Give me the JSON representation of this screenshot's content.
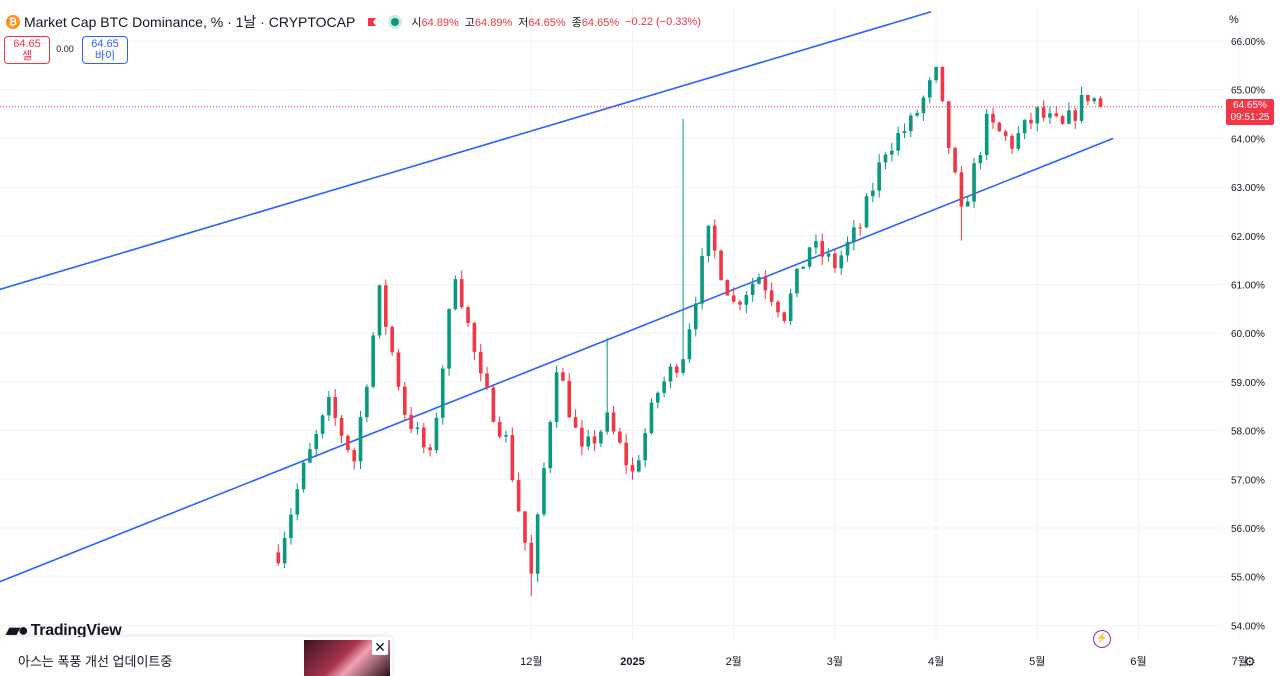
{
  "header": {
    "coin_icon": "bitcoin-icon",
    "title": "Market Cap BTC Dominance, % · 1날 · CRYPTOCAP",
    "status_color": "#089981",
    "ohlc": [
      {
        "label": "시",
        "value": "64.89%"
      },
      {
        "label": "고",
        "value": "64.89%"
      },
      {
        "label": "저",
        "value": "64.65%"
      },
      {
        "label": "종",
        "value": "64.65%"
      }
    ],
    "change": "−0.22 (−0.33%)"
  },
  "trade": {
    "sell_price": "64.65",
    "sell_label": "셀",
    "spread": "0.00",
    "buy_price": "64.65",
    "buy_label": "바이"
  },
  "axis": {
    "unit": "%",
    "current_price": "64.65%",
    "countdown": "09:51:25"
  },
  "branding": {
    "logo_text": "TradingView"
  },
  "banner": {
    "text": "아스는 폭풍 개선 업데이트중",
    "close_icon": "close-icon"
  },
  "icons": {
    "bolt": "lightning-icon",
    "settings": "gear-icon"
  },
  "colors": {
    "up": "#089981",
    "down": "#f23645",
    "channel": "#2962ff"
  },
  "chart_data": {
    "type": "candlestick",
    "yunit": "%",
    "ylim": [
      53.9,
      66.3
    ],
    "y_ticks": [
      "66.00%",
      "65.00%",
      "64.00%",
      "63.00%",
      "62.00%",
      "61.00%",
      "60.00%",
      "59.00%",
      "58.00%",
      "57.00%",
      "56.00%",
      "55.00%",
      "54.00%"
    ],
    "x_ticks": [
      "12월",
      "2025",
      "2월",
      "3월",
      "4월",
      "5월",
      "6월",
      "7월"
    ],
    "last_price": 64.65,
    "trend_points": [
      [
        11,
        55.5
      ],
      [
        12,
        57.2
      ],
      [
        13,
        58.5
      ],
      [
        14,
        57.4
      ],
      [
        15,
        60.8
      ],
      [
        16,
        58.4
      ],
      [
        17,
        57.4
      ],
      [
        18,
        61.3
      ],
      [
        19,
        59.0
      ],
      [
        20,
        57.8
      ],
      [
        21,
        55.0
      ],
      [
        22,
        59.4
      ],
      [
        23,
        57.5
      ],
      [
        24,
        58.2
      ],
      [
        25,
        57.1
      ],
      [
        26,
        58.8
      ],
      [
        27,
        59.6
      ],
      [
        28,
        62.0
      ],
      [
        29,
        60.6
      ],
      [
        30,
        61.2
      ],
      [
        31,
        60.4
      ],
      [
        32,
        61.8
      ],
      [
        33,
        61.4
      ],
      [
        34,
        62.2
      ],
      [
        35,
        63.8
      ],
      [
        36,
        64.3
      ],
      [
        37,
        65.3
      ],
      [
        38,
        62.4
      ],
      [
        39,
        64.3
      ],
      [
        40,
        63.9
      ],
      [
        41,
        64.5
      ],
      [
        42,
        64.2
      ],
      [
        43,
        64.9
      ],
      [
        43.6,
        64.65
      ]
    ],
    "wick_overrides": [
      {
        "x": 21,
        "low": 54.6
      },
      {
        "x": 24,
        "high": 59.9
      },
      {
        "x": 27,
        "high": 64.4
      },
      {
        "x": 37,
        "high": 65.4
      },
      {
        "x": 38,
        "low": 61.9
      }
    ],
    "channel": {
      "upper": {
        "from": [
          0,
          60.9
        ],
        "to": [
          36.8,
          66.6
        ]
      },
      "lower": {
        "from": [
          0,
          54.9
        ],
        "to": [
          44,
          64.0
        ]
      }
    },
    "x_tick_positions": [
      21,
      25,
      29,
      33,
      37,
      41,
      45,
      49
    ]
  }
}
